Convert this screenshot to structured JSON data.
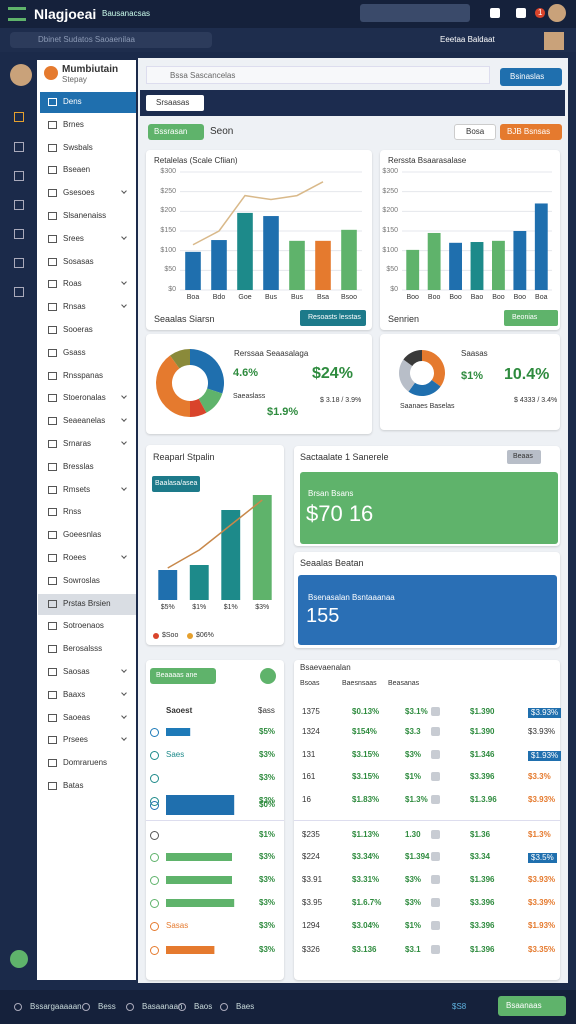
{
  "header": {
    "app_title": "Nlagjoeai",
    "tab": "Bausanacsas",
    "notification": "1",
    "search": "Dbinet Sudatos Saoaenilaa",
    "status": "Eeetaa Baldaat"
  },
  "sidebar": {
    "brand": "Mumbiutain",
    "brand_sub": "Stepay",
    "items": [
      {
        "label": "Dens",
        "active": true
      },
      {
        "label": "Brnes"
      },
      {
        "label": "Swsbals"
      },
      {
        "label": "Bseaen"
      },
      {
        "label": "Gsesoes",
        "expand": true
      },
      {
        "label": "Slsanenaiss"
      },
      {
        "label": "Srees",
        "expand": true
      },
      {
        "label": "Sosasas"
      },
      {
        "label": "Roas",
        "expand": true
      },
      {
        "label": "Rnsas",
        "expand": true
      },
      {
        "label": "Sooeras"
      },
      {
        "label": "Gsass"
      },
      {
        "label": "Rnsspanas"
      },
      {
        "label": "Stoeronalas",
        "expand": true
      },
      {
        "label": "Seaeanelas",
        "expand": true
      },
      {
        "label": "Srnaras",
        "expand": true
      },
      {
        "label": "Bresslas"
      },
      {
        "label": "Rmsets",
        "expand": true
      },
      {
        "label": "Rnss"
      },
      {
        "label": "Goeesnlas"
      },
      {
        "label": "Roees",
        "expand": true
      },
      {
        "label": "Sowroslas"
      },
      {
        "label": "Prstas Brsien",
        "selected": true
      },
      {
        "label": "Sotroenaos"
      },
      {
        "label": "Berosalsss"
      },
      {
        "label": "Saosas",
        "expand": true
      },
      {
        "label": "Baaxs",
        "expand": true
      },
      {
        "label": "Saoeas",
        "expand": true
      },
      {
        "label": "Prsees",
        "expand": true
      },
      {
        "label": "Domraruens"
      },
      {
        "label": "Batas"
      }
    ]
  },
  "toolbar": {
    "search": "Bssa Sascancelas",
    "button": "Bsinaslas",
    "filter": "Srsaasas",
    "tab": "Bssrasan",
    "tab_label": "Seon",
    "button_2": "Bosa",
    "button_3": "BJB Bsnsas"
  },
  "charts": [
    {
      "type": "bar",
      "title": "Retalelas (Scale Cfiian)",
      "categories": [
        "Boa",
        "Bdo",
        "Goe",
        "Bus",
        "Bus",
        "Bsa",
        "Bsoo"
      ],
      "values": [
        97,
        127,
        196,
        188,
        125,
        125,
        153
      ],
      "colors": [
        "#1f6fae",
        "#1f6fae",
        "#1d8a8a",
        "#1f6fae",
        "#5fb36b",
        "#e57a2e",
        "#5fb36b"
      ],
      "line": {
        "color": "#d9b98a",
        "values": [
          115,
          150,
          240,
          230,
          240,
          275,
          null
        ]
      },
      "ylim": [
        0,
        300
      ],
      "yticks": [
        {
          "value": 0,
          "label": "$0"
        },
        {
          "value": 50,
          "label": "$50"
        },
        {
          "value": 100,
          "label": "$100"
        },
        {
          "value": 150,
          "label": "$150"
        },
        {
          "value": 200,
          "label": "$200"
        },
        {
          "value": 250,
          "label": "$250"
        },
        {
          "value": 300,
          "label": "$300"
        }
      ],
      "footer": "Seaalas Siarsn",
      "button": "Resoasts lesstas"
    },
    {
      "type": "bar",
      "title": "Rerssta Bsaarasalase",
      "categories": [
        "Boo",
        "Boo",
        "Boo",
        "Bao",
        "Boo",
        "Boo",
        "Boa"
      ],
      "values": [
        102,
        145,
        120,
        122,
        125,
        150,
        220
      ],
      "colors": [
        "#5fb36b",
        "#5fb36b",
        "#1f6fae",
        "#1d8a8a",
        "#5fb36b",
        "#1f6fae",
        "#1f6fae"
      ],
      "ylim": [
        0,
        300
      ],
      "yticks": [
        {
          "value": 0,
          "label": "$0"
        },
        {
          "value": 50,
          "label": "$50"
        },
        {
          "value": 100,
          "label": "$100"
        },
        {
          "value": 150,
          "label": "$150"
        },
        {
          "value": 200,
          "label": "$200"
        },
        {
          "value": 250,
          "label": "$250"
        },
        {
          "value": 300,
          "label": "$300"
        }
      ],
      "footer": "Senrien",
      "button": "Beonias"
    }
  ],
  "donuts": [
    {
      "type": "pie",
      "title": "Rerssaa Seaasalaga",
      "values": [
        30,
        12,
        8,
        40,
        10
      ],
      "colors": [
        "#1f6fae",
        "#5fb36b",
        "#d9442b",
        "#e57a2e",
        "#8a8a3a"
      ],
      "small_value": "4.6%",
      "big_value": "$24%",
      "caption": "Saeaslass",
      "note": "$ 3.18 / 3.9%",
      "footnote": "$1.9%"
    },
    {
      "type": "pie",
      "title": "Saasas",
      "values": [
        35,
        25,
        25,
        15
      ],
      "colors": [
        "#e57a2e",
        "#1f6fae",
        "#b8bec8",
        "#3a3a3a"
      ],
      "small_value": "$1%",
      "big_value": "10.4%",
      "caption": "Saanaes Baselas",
      "note": "$ 4333 / 3.4%"
    }
  ],
  "trend_card": {
    "type": "bar",
    "title": "Reaparl Stpalin",
    "button": "Baalasa/asea",
    "categories": [
      "$5%",
      "$1%",
      "$1%",
      "$3%"
    ],
    "values": [
      30,
      35,
      90,
      105
    ],
    "colors": [
      "#1f6fae",
      "#1d8a8a",
      "#1d8a8a",
      "#5fb36b"
    ],
    "line": {
      "color": "#c8884a",
      "values": [
        32,
        50,
        75,
        100
      ]
    },
    "ylim": [
      0,
      110
    ],
    "legend": [
      "$Soo",
      "$06%"
    ],
    "legend_colors": [
      "#d9442b",
      "#e5a02e"
    ]
  },
  "stat_cards": [
    {
      "title": "Sactaalate 1 Sanerele",
      "button": "Beaas",
      "label": "Brsan Bsans",
      "value": "$70 16",
      "color": "#5fb36b"
    },
    {
      "title": "Seaalas Beatan",
      "label": "Bsenasalan Bsntaaanaa",
      "value": "155",
      "color": "#2a6fb5"
    }
  ],
  "list": {
    "button": "Beaaaas ane",
    "header": [
      "Saoest",
      "$ass"
    ],
    "groups": [
      [
        {
          "bar": 22,
          "color": "#1e7ab8",
          "value": "$5%"
        },
        {
          "label": "Saes",
          "color": "#1d8a8a",
          "value": "$3%"
        },
        {
          "color": "#1d8a8a",
          "value": "$3%"
        },
        {
          "color": "#1d8a8a",
          "value": "$3%"
        },
        {
          "bar": 62,
          "color": "#1f6fae",
          "value": "$0%"
        }
      ],
      [
        {
          "color": "#555",
          "value": "$1%"
        },
        {
          "bar": 60,
          "color": "#5fb36b",
          "value": "$3%"
        },
        {
          "bar": 60,
          "color": "#5fb36b",
          "value": "$3%"
        },
        {
          "bar": 62,
          "color": "#5fb36b",
          "value": "$3%"
        },
        {
          "label": "Sasas",
          "color": "#e57a2e",
          "value": "$3%"
        },
        {
          "bar": 44,
          "color": "#e57a2e",
          "value": "$3%"
        }
      ]
    ]
  },
  "table": {
    "title": "Bsaevaenalan",
    "columns": [
      "Bsoas",
      "Baesnsaas",
      "Beasanas"
    ],
    "groups": [
      [
        {
          "cells": [
            "1375",
            "$0.13%",
            "$3.1%",
            "$1.390"
          ],
          "tag": "$3.93%",
          "tag_style": "badge"
        },
        {
          "cells": [
            "1324",
            "$154%",
            "$3.3",
            "$1.390"
          ],
          "tag": "$3.93%",
          "tag_style": "plain"
        },
        {
          "cells": [
            "131",
            "$3.15%",
            "$3%",
            "$1.346"
          ],
          "tag": "$1.93%",
          "tag_style": "badge"
        },
        {
          "cells": [
            "161",
            "$3.15%",
            "$1%",
            "$3.396"
          ],
          "tag": "$3.3%",
          "tag_style": "orange"
        },
        {
          "cells": [
            "16",
            "$1.83%",
            "$1.3%",
            "$1.3.96"
          ],
          "tag": "$3.93%",
          "tag_style": "orange"
        }
      ],
      [
        {
          "cells": [
            "$235",
            "$1.13%",
            "1.30",
            "$1.36"
          ],
          "tag": "$1.3%",
          "tag_style": "orange"
        },
        {
          "cells": [
            "$224",
            "$3.34%",
            "$1.394",
            "$3.34"
          ],
          "tag": "$3.5%",
          "tag_style": "badge"
        },
        {
          "cells": [
            "$3.91",
            "$3.31%",
            "$3%",
            "$1.396"
          ],
          "tag": "$3.93%",
          "tag_style": "orange"
        },
        {
          "cells": [
            "$3.95",
            "$1.6.7%",
            "$3%",
            "$3.396"
          ],
          "tag": "$3.39%",
          "tag_style": "orange"
        },
        {
          "cells": [
            "1294",
            "$3.04%",
            "$1%",
            "$3.396"
          ],
          "tag": "$1.93%",
          "tag_style": "orange"
        },
        {
          "cells": [
            "$326",
            "$3.136",
            "$3.1",
            "$1.396"
          ],
          "tag": "$3.35%",
          "tag_style": "orange"
        }
      ]
    ]
  },
  "footer": {
    "items": [
      "Bssargaaaaan",
      "Bess",
      "Basaanaan",
      "Baos",
      "Baes"
    ],
    "status": "$S8",
    "button": "Bsaanaas"
  }
}
